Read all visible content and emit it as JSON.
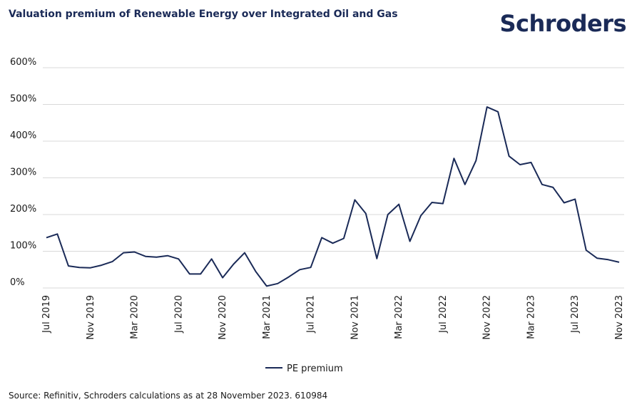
{
  "chart_data": {
    "type": "line",
    "title": "Valuation premium of Renewable Energy over Integrated Oil and Gas",
    "brand": "Schroders",
    "source": "Source: Refinitiv, Schroders calculations as at 28 November 2023. 610984",
    "categories": [
      "Jul 2019",
      null,
      null,
      null,
      "Nov 2019",
      null,
      null,
      null,
      "Mar 2020",
      null,
      null,
      null,
      "Jul 2020",
      null,
      null,
      null,
      "Nov 2020",
      null,
      null,
      null,
      "Mar 2021",
      null,
      null,
      null,
      "Jul 2021",
      null,
      null,
      null,
      "Nov 2021",
      null,
      null,
      null,
      "Mar 2022",
      null,
      null,
      null,
      "Jul 2022",
      null,
      null,
      null,
      "Nov 2022",
      null,
      null,
      null,
      "Mar 2023",
      null,
      null,
      null,
      "Jul 2023",
      null,
      null,
      null,
      "Nov 2023"
    ],
    "series": [
      {
        "name": "PE premium",
        "color": "#1a2a57",
        "values": [
          137,
          147,
          60,
          56,
          55,
          62,
          72,
          96,
          98,
          86,
          84,
          88,
          79,
          38,
          38,
          79,
          28,
          65,
          96,
          45,
          5,
          12,
          30,
          50,
          56,
          137,
          122,
          135,
          240,
          203,
          80,
          200,
          228,
          127,
          197,
          233,
          230,
          353,
          282,
          347,
          493,
          480,
          359,
          336,
          342,
          282,
          274,
          232,
          242,
          103,
          81,
          77,
          70
        ]
      }
    ],
    "ylim": [
      0,
      600
    ],
    "yticks": [
      {
        "value": 0,
        "label": "0%"
      },
      {
        "value": 100,
        "label": "100%"
      },
      {
        "value": 200,
        "label": "200%"
      },
      {
        "value": 300,
        "label": "300%"
      },
      {
        "value": 400,
        "label": "400%"
      },
      {
        "value": 500,
        "label": "500%"
      },
      {
        "value": 600,
        "label": "600%"
      }
    ],
    "grid": true,
    "legend": "bottom"
  }
}
